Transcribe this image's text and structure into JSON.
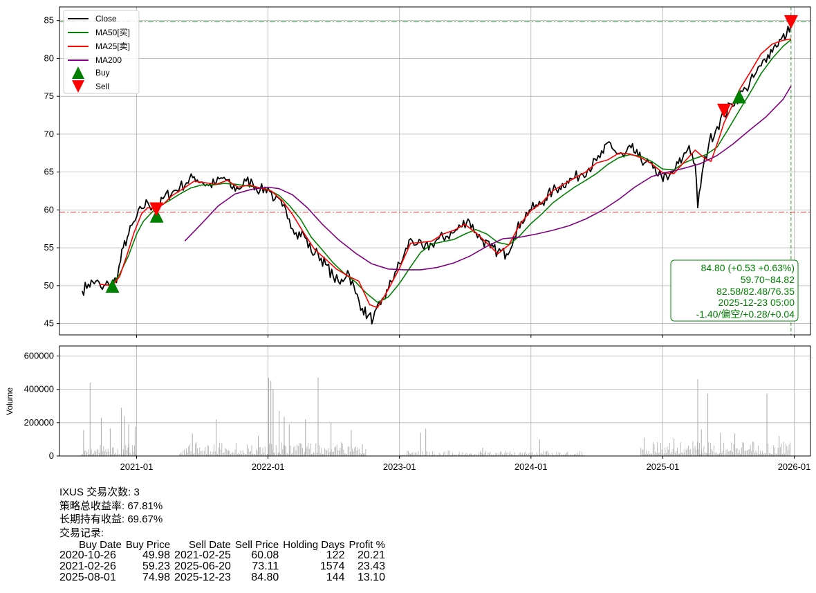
{
  "chart_data": [
    {
      "type": "line",
      "panel": "price",
      "xlim": [
        "2020-06-01",
        "2026-02-15"
      ],
      "ylim": [
        43.5,
        86.8
      ],
      "yticks": [
        45,
        50,
        55,
        60,
        65,
        70,
        75,
        80,
        85
      ],
      "grid": true,
      "legend_position": "top-left",
      "legend": [
        "Close",
        "MA50[买]",
        "MA25[卖]",
        "MA200",
        "Buy",
        "Sell"
      ],
      "series": [
        {
          "name": "Close",
          "color": "#000000",
          "x": [
            "2020-08-03",
            "2020-08-20",
            "2020-09-10",
            "2020-09-28",
            "2020-10-15",
            "2020-10-26",
            "2020-11-10",
            "2020-11-25",
            "2020-12-10",
            "2020-12-28",
            "2021-01-15",
            "2021-02-01",
            "2021-02-15",
            "2021-03-01",
            "2021-03-20",
            "2021-04-10",
            "2021-05-01",
            "2021-05-20",
            "2021-06-10",
            "2021-07-01",
            "2021-07-20",
            "2021-08-10",
            "2021-09-01",
            "2021-09-20",
            "2021-10-10",
            "2021-11-01",
            "2021-11-20",
            "2021-12-10",
            "2022-01-01",
            "2022-01-20",
            "2022-02-10",
            "2022-03-01",
            "2022-03-20",
            "2022-04-10",
            "2022-05-01",
            "2022-05-20",
            "2022-06-10",
            "2022-07-01",
            "2022-07-20",
            "2022-08-10",
            "2022-09-01",
            "2022-09-20",
            "2022-10-05",
            "2022-10-20",
            "2022-11-10",
            "2022-12-01",
            "2022-12-20",
            "2023-01-10",
            "2023-02-01",
            "2023-02-20",
            "2023-03-10",
            "2023-04-01",
            "2023-04-20",
            "2023-05-10",
            "2023-06-01",
            "2023-06-20",
            "2023-07-10",
            "2023-08-01",
            "2023-08-20",
            "2023-09-10",
            "2023-10-01",
            "2023-10-25",
            "2023-11-15",
            "2023-12-05",
            "2023-12-28",
            "2024-01-20",
            "2024-02-10",
            "2024-03-01",
            "2024-03-20",
            "2024-04-10",
            "2024-05-01",
            "2024-05-20",
            "2024-06-10",
            "2024-07-01",
            "2024-07-20",
            "2024-08-05",
            "2024-08-25",
            "2024-09-15",
            "2024-10-05",
            "2024-10-25",
            "2024-11-15",
            "2024-12-05",
            "2024-12-28",
            "2025-01-15",
            "2025-02-05",
            "2025-02-25",
            "2025-03-15",
            "2025-04-01",
            "2025-04-08",
            "2025-04-20",
            "2025-05-10",
            "2025-06-01",
            "2025-06-20",
            "2025-07-10",
            "2025-08-01",
            "2025-08-20",
            "2025-09-10",
            "2025-10-01",
            "2025-10-20",
            "2025-11-05",
            "2025-11-25",
            "2025-12-10",
            "2025-12-23"
          ],
          "y": [
            49.3,
            50.2,
            50.6,
            49.5,
            50.3,
            49.98,
            51.5,
            55.0,
            56.8,
            58.6,
            60.2,
            61.0,
            60.3,
            60.1,
            61.8,
            62.3,
            63.0,
            63.6,
            64.4,
            63.7,
            63.2,
            63.6,
            64.3,
            63.0,
            62.8,
            63.8,
            63.5,
            62.6,
            62.9,
            61.4,
            60.5,
            58.8,
            57.0,
            56.8,
            54.5,
            54.2,
            52.8,
            51.2,
            50.2,
            52.0,
            49.0,
            47.0,
            46.0,
            45.6,
            47.5,
            49.5,
            51.8,
            53.5,
            56.2,
            55.5,
            54.8,
            55.5,
            56.2,
            56.5,
            57.0,
            57.8,
            58.8,
            57.0,
            56.0,
            55.0,
            54.5,
            54.2,
            56.5,
            58.5,
            60.0,
            60.5,
            61.5,
            62.5,
            63.0,
            63.8,
            64.2,
            64.8,
            65.5,
            66.5,
            67.5,
            69.0,
            67.5,
            67.0,
            68.2,
            67.0,
            66.3,
            65.5,
            64.5,
            64.0,
            65.5,
            66.8,
            68.5,
            66.0,
            60.3,
            64.8,
            69.0,
            71.0,
            72.5,
            74.0,
            74.98,
            76.0,
            77.5,
            79.0,
            80.5,
            81.5,
            82.5,
            83.0,
            84.8
          ]
        },
        {
          "name": "MA50[买]",
          "color": "#008000",
          "x": [
            "2020-10-15",
            "2020-10-26",
            "2020-11-15",
            "2020-12-10",
            "2021-01-01",
            "2021-01-20",
            "2021-02-15",
            "2021-03-10",
            "2021-04-01",
            "2021-05-01",
            "2021-06-01",
            "2021-07-01",
            "2021-08-01",
            "2021-09-01",
            "2021-10-01",
            "2021-11-01",
            "2021-12-01",
            "2022-01-01",
            "2022-02-01",
            "2022-03-01",
            "2022-04-01",
            "2022-05-01",
            "2022-06-01",
            "2022-07-01",
            "2022-08-01",
            "2022-09-01",
            "2022-10-01",
            "2022-11-01",
            "2022-12-01",
            "2023-01-01",
            "2023-02-01",
            "2023-03-01",
            "2023-04-01",
            "2023-05-01",
            "2023-06-01",
            "2023-07-01",
            "2023-08-01",
            "2023-09-01",
            "2023-10-01",
            "2023-11-01",
            "2023-12-01",
            "2024-01-01",
            "2024-02-01",
            "2024-03-01",
            "2024-04-01",
            "2024-05-01",
            "2024-06-01",
            "2024-07-01",
            "2024-08-01",
            "2024-09-01",
            "2024-10-01",
            "2024-11-01",
            "2024-12-01",
            "2025-01-01",
            "2025-02-01",
            "2025-03-01",
            "2025-04-01",
            "2025-05-01",
            "2025-06-01",
            "2025-07-01",
            "2025-08-01",
            "2025-09-01",
            "2025-10-01",
            "2025-11-01",
            "2025-12-01",
            "2025-12-23"
          ],
          "y": [
            50.1,
            50.2,
            51.5,
            54.0,
            56.8,
            58.5,
            59.8,
            60.6,
            61.2,
            62.1,
            62.9,
            63.3,
            63.3,
            63.5,
            63.4,
            63.2,
            63.0,
            62.7,
            61.9,
            60.6,
            58.8,
            56.4,
            54.7,
            53.0,
            51.6,
            50.5,
            49.0,
            47.8,
            48.5,
            50.3,
            52.5,
            54.4,
            55.5,
            55.8,
            56.1,
            56.8,
            57.4,
            56.8,
            55.7,
            55.4,
            56.6,
            58.2,
            59.5,
            60.9,
            62.0,
            63.0,
            63.9,
            64.8,
            66.0,
            66.9,
            67.3,
            67.1,
            66.4,
            65.4,
            65.3,
            66.2,
            66.8,
            67.3,
            68.3,
            70.6,
            73.1,
            75.5,
            78.0,
            80.0,
            81.6,
            82.48
          ]
        },
        {
          "name": "MA25[卖]",
          "color": "#ff0000",
          "x": [
            "2020-09-20",
            "2020-10-10",
            "2020-10-26",
            "2020-11-15",
            "2020-12-05",
            "2020-12-25",
            "2021-01-15",
            "2021-02-01",
            "2021-02-20",
            "2021-03-15",
            "2021-04-10",
            "2021-05-10",
            "2021-06-10",
            "2021-07-10",
            "2021-08-10",
            "2021-09-10",
            "2021-10-10",
            "2021-11-10",
            "2021-12-10",
            "2022-01-10",
            "2022-02-10",
            "2022-03-10",
            "2022-04-10",
            "2022-05-10",
            "2022-06-10",
            "2022-07-10",
            "2022-08-10",
            "2022-09-10",
            "2022-10-10",
            "2022-11-01",
            "2022-12-01",
            "2023-01-01",
            "2023-02-01",
            "2023-03-01",
            "2023-04-01",
            "2023-05-01",
            "2023-06-01",
            "2023-07-01",
            "2023-08-01",
            "2023-09-01",
            "2023-10-01",
            "2023-11-01",
            "2023-12-01",
            "2024-01-01",
            "2024-02-01",
            "2024-03-01",
            "2024-04-01",
            "2024-05-01",
            "2024-06-01",
            "2024-07-01",
            "2024-08-01",
            "2024-09-01",
            "2024-10-01",
            "2024-11-01",
            "2024-12-01",
            "2025-01-01",
            "2025-02-01",
            "2025-03-01",
            "2025-04-01",
            "2025-04-25",
            "2025-05-15",
            "2025-06-05",
            "2025-06-20",
            "2025-07-10",
            "2025-08-01",
            "2025-09-01",
            "2025-10-01",
            "2025-11-01",
            "2025-12-01",
            "2025-12-23"
          ],
          "y": [
            50.2,
            50.1,
            50.0,
            51.2,
            54.0,
            57.0,
            59.5,
            60.3,
            60.2,
            60.7,
            61.9,
            62.8,
            63.8,
            63.6,
            63.4,
            63.9,
            63.0,
            63.3,
            62.9,
            62.5,
            61.2,
            59.4,
            57.0,
            54.8,
            53.5,
            52.2,
            51.3,
            50.6,
            47.5,
            47.1,
            49.5,
            52.3,
            55.6,
            55.7,
            55.9,
            56.8,
            57.3,
            58.1,
            57.0,
            55.6,
            54.2,
            55.4,
            58.1,
            59.9,
            61.0,
            62.5,
            63.4,
            64.2,
            65.0,
            66.2,
            66.6,
            67.5,
            67.4,
            66.9,
            66.1,
            64.9,
            64.8,
            66.3,
            67.9,
            66.9,
            66.4,
            69.3,
            71.5,
            73.5,
            75.8,
            78.2,
            80.6,
            81.9,
            82.4,
            82.58
          ]
        },
        {
          "name": "MA200",
          "color": "#800080",
          "x": [
            "2021-05-15",
            "2021-07-01",
            "2021-08-15",
            "2021-10-01",
            "2021-11-15",
            "2022-01-01",
            "2022-02-01",
            "2022-03-10",
            "2022-04-20",
            "2022-06-01",
            "2022-07-15",
            "2022-09-01",
            "2022-10-15",
            "2022-12-01",
            "2023-01-15",
            "2023-03-01",
            "2023-04-15",
            "2023-06-01",
            "2023-07-15",
            "2023-09-01",
            "2023-10-15",
            "2023-12-01",
            "2024-01-15",
            "2024-03-01",
            "2024-04-15",
            "2024-06-01",
            "2024-07-15",
            "2024-09-01",
            "2024-10-15",
            "2024-12-01",
            "2025-01-15",
            "2025-03-01",
            "2025-04-15",
            "2025-06-01",
            "2025-07-15",
            "2025-09-01",
            "2025-10-15",
            "2025-12-01",
            "2025-12-23"
          ],
          "y": [
            55.9,
            58.2,
            60.5,
            62.1,
            62.7,
            63.0,
            62.8,
            62.0,
            60.3,
            58.1,
            56.1,
            54.3,
            52.9,
            52.2,
            52.1,
            52.1,
            52.4,
            53.0,
            53.9,
            55.2,
            56.2,
            56.4,
            56.8,
            57.3,
            57.9,
            58.8,
            59.9,
            61.4,
            63.0,
            64.4,
            65.0,
            65.5,
            66.1,
            67.2,
            68.7,
            70.6,
            72.3,
            74.6,
            76.35
          ]
        }
      ],
      "markers": [
        {
          "name": "Buy",
          "color": "#008000",
          "shape": "triangle-up",
          "x": [
            "2020-10-26",
            "2021-02-26",
            "2025-08-01"
          ],
          "y": [
            49.98,
            59.23,
            74.98
          ]
        },
        {
          "name": "Sell",
          "color": "#ff0000",
          "shape": "triangle-down",
          "x": [
            "2021-02-25",
            "2025-06-20",
            "2025-12-23"
          ],
          "y": [
            60.08,
            73.11,
            84.8
          ]
        }
      ],
      "hlines": [
        {
          "y": 84.82,
          "color": "#008000",
          "style": "dash-dot"
        },
        {
          "y": 59.7,
          "color": "#ff0000",
          "style": "dash-dot"
        }
      ],
      "vline": {
        "x": "2025-12-23",
        "color": "#008000",
        "style": "dashed"
      },
      "info_box": {
        "lines": [
          "84.80 (+0.53 +0.63%)",
          "59.70~84.82",
          "82.58/82.48/76.35",
          "2025-12-23 05:00",
          "-1.40/偏空/+0.28/+0.04"
        ],
        "border_color": "#008000",
        "text_color": "#008000",
        "position": "bottom-right"
      }
    },
    {
      "type": "bar",
      "panel": "volume",
      "ylabel": "Volume",
      "ylim": [
        0,
        660000
      ],
      "yticks": [
        0,
        200000,
        400000,
        600000
      ],
      "xticks": [
        "2021-01",
        "2022-01",
        "2023-01",
        "2024-01",
        "2025-01",
        "2026-01"
      ],
      "grid": true,
      "bar_color": "#aaaaaa",
      "segments": [
        {
          "start": "2020-08-01",
          "end": "2020-12-31",
          "base": 40000
        },
        {
          "start": "2021-05-01",
          "end": "2022-09-30",
          "base": 45000
        },
        {
          "start": "2023-01-01",
          "end": "2024-05-31",
          "base": 18000
        },
        {
          "start": "2024-11-01",
          "end": "2025-12-23",
          "base": 50000
        }
      ],
      "spikes": [
        {
          "x": "2020-08-07",
          "y": 155000
        },
        {
          "x": "2020-08-25",
          "y": 440000
        },
        {
          "x": "2020-09-25",
          "y": 230000
        },
        {
          "x": "2020-10-20",
          "y": 165000
        },
        {
          "x": "2020-11-20",
          "y": 290000
        },
        {
          "x": "2020-11-28",
          "y": 240000
        },
        {
          "x": "2020-12-10",
          "y": 190000
        },
        {
          "x": "2020-12-28",
          "y": 175000
        },
        {
          "x": "2021-06-05",
          "y": 135000
        },
        {
          "x": "2021-08-10",
          "y": 220000
        },
        {
          "x": "2021-12-05",
          "y": 120000
        },
        {
          "x": "2022-01-03",
          "y": 470000
        },
        {
          "x": "2022-01-09",
          "y": 450000
        },
        {
          "x": "2022-01-15",
          "y": 400000
        },
        {
          "x": "2022-02-01",
          "y": 270000
        },
        {
          "x": "2022-02-15",
          "y": 235000
        },
        {
          "x": "2022-03-01",
          "y": 190000
        },
        {
          "x": "2022-04-15",
          "y": 220000
        },
        {
          "x": "2022-05-20",
          "y": 470000
        },
        {
          "x": "2022-06-25",
          "y": 200000
        },
        {
          "x": "2022-08-20",
          "y": 155000
        },
        {
          "x": "2022-09-20",
          "y": 70000
        },
        {
          "x": "2023-03-01",
          "y": 140000
        },
        {
          "x": "2023-03-15",
          "y": 165000
        },
        {
          "x": "2023-08-20",
          "y": 50000
        },
        {
          "x": "2024-01-25",
          "y": 100000
        },
        {
          "x": "2024-11-10",
          "y": 110000
        },
        {
          "x": "2025-02-01",
          "y": 105000
        },
        {
          "x": "2025-04-08",
          "y": 460000
        },
        {
          "x": "2025-04-18",
          "y": 160000
        },
        {
          "x": "2025-05-06",
          "y": 375000
        },
        {
          "x": "2025-06-10",
          "y": 140000
        },
        {
          "x": "2025-07-20",
          "y": 135000
        },
        {
          "x": "2025-10-17",
          "y": 375000
        },
        {
          "x": "2025-11-20",
          "y": 120000
        }
      ]
    }
  ],
  "summary": {
    "title_line": "IXUS 交易次数: 3",
    "strategy_return": "策略总收益率: 67.81%",
    "buy_hold_return": "长期持有收益: 69.67%",
    "trades_label": "交易记录:",
    "columns": [
      "Buy Date",
      "Buy Price",
      "Sell Date",
      "Sell Price",
      "Holding Days",
      "Profit %"
    ],
    "rows": [
      [
        "2020-10-26",
        "49.98",
        "2021-02-25",
        "60.08",
        "122",
        "20.21"
      ],
      [
        "2021-02-26",
        "59.23",
        "2025-06-20",
        "73.11",
        "1574",
        "23.43"
      ],
      [
        "2025-08-01",
        "74.98",
        "2025-12-23",
        "84.80",
        "144",
        "13.10"
      ]
    ]
  }
}
